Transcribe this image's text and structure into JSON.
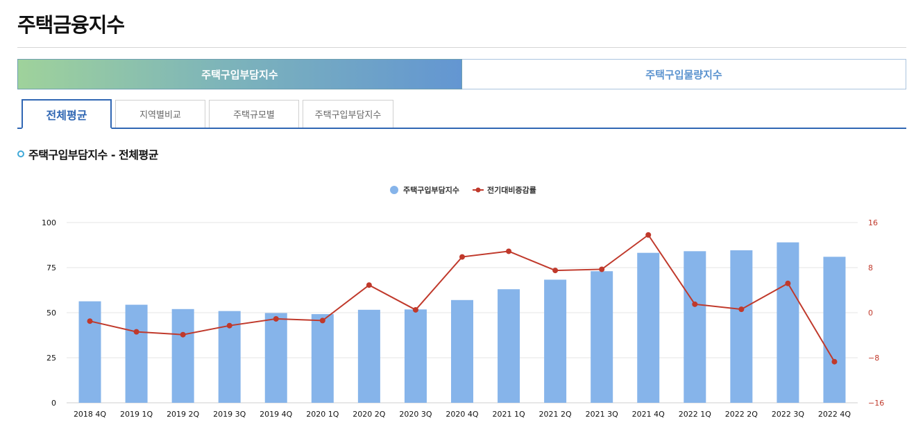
{
  "page": {
    "title": "주택금융지수"
  },
  "main_tabs": [
    {
      "label": "주택구입부담지수",
      "active": true
    },
    {
      "label": "주택구입물량지수",
      "active": false
    }
  ],
  "sub_tabs": [
    {
      "label": "전체평균",
      "active": true
    },
    {
      "label": "지역별비교",
      "active": false
    },
    {
      "label": "주택규모별",
      "active": false
    },
    {
      "label": "주택구입부담지수",
      "active": false
    }
  ],
  "section": {
    "title": "주택구입부담지수 - 전체평균"
  },
  "colors": {
    "bar": "#86b4ea",
    "line": "#c0392b",
    "accent": "#2f66b3"
  },
  "chart_data": {
    "type": "bar",
    "categories": [
      "2018 4Q",
      "2019 1Q",
      "2019 2Q",
      "2019 3Q",
      "2019 4Q",
      "2020 1Q",
      "2020 2Q",
      "2020 3Q",
      "2020 4Q",
      "2021 1Q",
      "2021 2Q",
      "2021 3Q",
      "2021 4Q",
      "2022 1Q",
      "2022 2Q",
      "2022 3Q",
      "2022 4Q"
    ],
    "series": [
      {
        "name": "주택구입부담지수",
        "type": "bar",
        "axis": "left",
        "values": [
          56.3,
          54.4,
          52.0,
          50.9,
          49.8,
          49.2,
          51.6,
          51.8,
          57.0,
          63.0,
          68.3,
          73.0,
          83.2,
          84.1,
          84.6,
          89.0,
          81.0
        ]
      },
      {
        "name": "전기대비증감률",
        "type": "line",
        "axis": "right",
        "values": [
          -1.5,
          -3.4,
          -3.9,
          -2.3,
          -1.1,
          -1.4,
          4.9,
          0.5,
          9.9,
          10.9,
          7.5,
          7.7,
          13.8,
          1.5,
          0.6,
          5.2,
          -8.7
        ]
      }
    ],
    "left_axis": {
      "min": 0,
      "max": 100,
      "ticks": [
        0,
        25,
        50,
        75,
        100
      ]
    },
    "right_axis": {
      "min": -16,
      "max": 16,
      "ticks": [
        "−16",
        "−8",
        "0",
        "8",
        "16"
      ],
      "tick_values": [
        -16,
        -8,
        0,
        8,
        16
      ]
    },
    "legend": {
      "placement": "top-center",
      "labels": [
        "주택구입부담지수",
        "전기대비증감률"
      ]
    },
    "grid": true
  }
}
